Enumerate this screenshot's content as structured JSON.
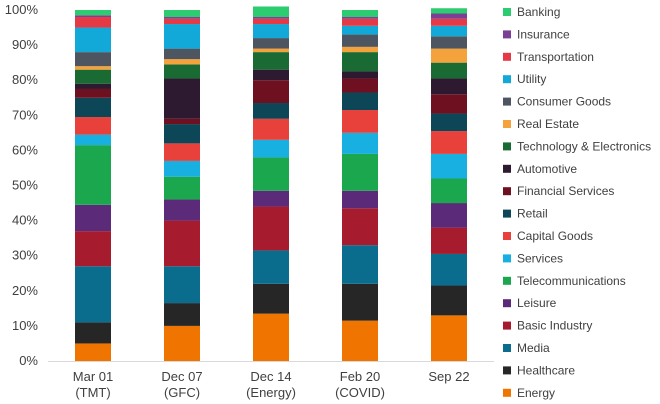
{
  "chart_data": {
    "type": "bar",
    "stacked": true,
    "percent": true,
    "title": "",
    "xlabel": "",
    "ylabel": "",
    "ylim": [
      0,
      100
    ],
    "grid": false,
    "legend_position": "right",
    "categories": [
      [
        "Mar 01",
        "(TMT)"
      ],
      [
        "Dec 07",
        "(GFC)"
      ],
      [
        "Dec 14",
        "(Energy)"
      ],
      [
        "Feb 20",
        "(COVID)"
      ],
      [
        "Sep 22",
        ""
      ]
    ],
    "y_ticks": [
      "0%",
      "10%",
      "20%",
      "30%",
      "40%",
      "50%",
      "60%",
      "70%",
      "80%",
      "90%",
      "100%"
    ],
    "series": [
      {
        "name": "Energy",
        "color": "#F07400",
        "values": [
          5,
          10,
          13.5,
          11.5,
          13
        ]
      },
      {
        "name": "Healthcare",
        "color": "#262626",
        "values": [
          6,
          6.5,
          8.5,
          10.5,
          8.5
        ]
      },
      {
        "name": "Media",
        "color": "#0A6D8E",
        "values": [
          16,
          10.5,
          9.5,
          11,
          9
        ]
      },
      {
        "name": "Basic Industry",
        "color": "#A61C2E",
        "values": [
          10,
          13,
          12.5,
          10.5,
          7.5
        ]
      },
      {
        "name": "Leisure",
        "color": "#5B2B7A",
        "values": [
          7.5,
          6,
          4.5,
          5,
          7
        ]
      },
      {
        "name": "Telecommunications",
        "color": "#1BA74E",
        "values": [
          17,
          6.5,
          9.5,
          10.5,
          7
        ]
      },
      {
        "name": "Services",
        "color": "#17B0E0",
        "values": [
          3,
          4.5,
          5,
          6,
          7
        ]
      },
      {
        "name": "Capital Goods",
        "color": "#E8413C",
        "values": [
          5,
          5,
          6,
          6.5,
          6.5
        ]
      },
      {
        "name": "Retail",
        "color": "#0D4757",
        "values": [
          5.5,
          5.5,
          4.5,
          5,
          5
        ]
      },
      {
        "name": "Financial Services",
        "color": "#6E1020",
        "values": [
          2.5,
          1.5,
          6.5,
          4,
          5.5
        ]
      },
      {
        "name": "Automotive",
        "color": "#2E1A30",
        "values": [
          1.5,
          11.5,
          3,
          2,
          4.5
        ]
      },
      {
        "name": "Technology & Electronics",
        "color": "#1A6B33",
        "values": [
          4,
          4,
          5,
          5.5,
          4.5
        ]
      },
      {
        "name": "Real Estate",
        "color": "#F4A23C",
        "values": [
          1,
          1.5,
          1,
          1.5,
          4
        ]
      },
      {
        "name": "Consumer Goods",
        "color": "#4D5560",
        "values": [
          4,
          3,
          3,
          3.5,
          3.5
        ]
      },
      {
        "name": "Utility",
        "color": "#12A8D8",
        "values": [
          7,
          7,
          4,
          2.5,
          3
        ]
      },
      {
        "name": "Transportation",
        "color": "#E63946",
        "values": [
          3,
          1.5,
          1.5,
          2,
          2
        ]
      },
      {
        "name": "Insurance",
        "color": "#7B3F96",
        "values": [
          0.5,
          0.5,
          0.5,
          0.5,
          1.5
        ]
      },
      {
        "name": "Banking",
        "color": "#2ECC71",
        "values": [
          1.5,
          2,
          3,
          2,
          1.5
        ]
      }
    ]
  }
}
